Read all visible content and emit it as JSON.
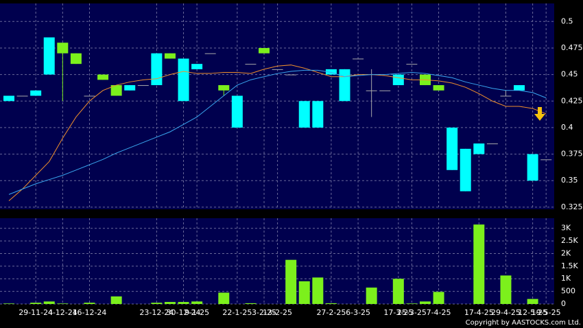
{
  "chart_data": {
    "type": "candlestick",
    "categories": [
      null,
      null,
      "29-11-24",
      null,
      "4-12-24",
      null,
      "16-12-24",
      null,
      null,
      null,
      null,
      "23-12-24",
      null,
      "30-12-24",
      "9-1-25",
      null,
      null,
      "22-1-25",
      null,
      "3-2-25",
      "13-2-25",
      null,
      null,
      null,
      "27-2-25",
      null,
      "6-3-25",
      null,
      null,
      "17-3-25",
      "25-3-25",
      null,
      "7-4-25",
      null,
      null,
      "17-4-25",
      null,
      "29-4-25",
      null,
      "12-5-25",
      "19-5-25"
    ],
    "open": [
      0.43,
      0.43,
      0.435,
      0.485,
      0.47,
      0.46,
      0.43,
      0.445,
      0.43,
      0.44,
      0.44,
      0.47,
      0.465,
      0.465,
      0.46,
      0.47,
      0.435,
      0.43,
      0.46,
      0.47,
      0.455,
      0.45,
      0.425,
      0.425,
      0.455,
      0.455,
      0.465,
      0.435,
      0.435,
      0.45,
      0.46,
      0.44,
      0.435,
      0.4,
      0.38,
      0.385,
      0.385,
      0.43,
      0.44,
      0.375,
      0.37
    ],
    "high": [
      0.43,
      0.43,
      0.435,
      0.485,
      0.48,
      0.47,
      0.43,
      0.45,
      0.44,
      0.44,
      0.44,
      0.47,
      0.47,
      0.465,
      0.46,
      0.47,
      0.44,
      0.43,
      0.46,
      0.475,
      0.455,
      0.45,
      0.425,
      0.425,
      0.455,
      0.455,
      0.465,
      0.455,
      0.435,
      0.45,
      0.46,
      0.45,
      0.44,
      0.4,
      0.38,
      0.385,
      0.385,
      0.435,
      0.44,
      0.375,
      0.37
    ],
    "low": [
      0.425,
      0.43,
      0.43,
      0.45,
      0.425,
      0.46,
      0.43,
      0.445,
      0.43,
      0.435,
      0.44,
      0.44,
      0.465,
      0.425,
      0.455,
      0.47,
      0.43,
      0.4,
      0.46,
      0.47,
      0.455,
      0.45,
      0.4,
      0.4,
      0.45,
      0.425,
      0.465,
      0.41,
      0.435,
      0.44,
      0.46,
      0.44,
      0.435,
      0.36,
      0.34,
      0.375,
      0.385,
      0.43,
      0.435,
      0.35,
      0.37
    ],
    "close": [
      0.425,
      0.43,
      0.43,
      0.45,
      0.48,
      0.47,
      0.43,
      0.45,
      0.44,
      0.435,
      0.44,
      0.44,
      0.47,
      0.425,
      0.455,
      0.47,
      0.44,
      0.4,
      0.46,
      0.475,
      0.455,
      0.45,
      0.4,
      0.4,
      0.45,
      0.425,
      0.465,
      0.435,
      0.435,
      0.44,
      0.46,
      0.45,
      0.44,
      0.36,
      0.34,
      0.375,
      0.385,
      0.43,
      0.435,
      0.35,
      0.37
    ],
    "up_color": "#7cf01c",
    "down_color": "#00ffff",
    "series": [
      {
        "color": "#f0902c",
        "values": [
          0.331,
          0.342,
          0.355,
          0.368,
          0.39,
          0.41,
          0.425,
          0.435,
          0.44,
          0.443,
          0.445,
          0.446,
          0.45,
          0.453,
          0.451,
          0.451,
          0.452,
          0.452,
          0.451,
          0.455,
          0.458,
          0.459,
          0.456,
          0.452,
          0.448,
          0.448,
          0.45,
          0.45,
          0.449,
          0.447,
          0.445,
          0.445,
          0.444,
          0.442,
          0.438,
          0.432,
          0.425,
          0.42,
          0.42,
          0.418,
          0.413
        ]
      },
      {
        "color": "#3aa8f0",
        "values": [
          0.337,
          0.342,
          0.347,
          0.351,
          0.355,
          0.36,
          0.365,
          0.37,
          0.376,
          0.381,
          0.386,
          0.391,
          0.396,
          0.403,
          0.41,
          0.42,
          0.43,
          0.44,
          0.445,
          0.448,
          0.451,
          0.453,
          0.454,
          0.454,
          0.452,
          0.448,
          0.449,
          0.45,
          0.45,
          0.451,
          0.452,
          0.451,
          0.449,
          0.447,
          0.443,
          0.44,
          0.437,
          0.435,
          0.435,
          0.433,
          0.428
        ]
      }
    ],
    "ylim": [
      0.323,
      0.517
    ],
    "yticks": [
      0.325,
      0.35,
      0.375,
      0.4,
      0.425,
      0.45,
      0.475,
      0.5
    ],
    "grid": true,
    "volume": {
      "color": "#7cf01c",
      "values": [
        20,
        0,
        50,
        100,
        20,
        0,
        50,
        0,
        300,
        0,
        0,
        50,
        80,
        80,
        100,
        0,
        450,
        0,
        30,
        0,
        0,
        1750,
        900,
        1050,
        30,
        0,
        0,
        650,
        0,
        1000,
        20,
        100,
        480,
        0,
        0,
        3150,
        0,
        1130,
        0,
        200,
        0
      ],
      "ylim": [
        0,
        3400
      ],
      "yticks": [
        0,
        500,
        {
          "value": 1000,
          "label": "1K"
        },
        {
          "value": 1500,
          "label": "1.5K"
        },
        {
          "value": 2000,
          "label": "2K"
        },
        {
          "value": 2500,
          "label": "2.5K"
        },
        {
          "value": 3000,
          "label": "3K"
        }
      ]
    },
    "footer": "Copyright by AASTOCKS.com Ltd."
  }
}
